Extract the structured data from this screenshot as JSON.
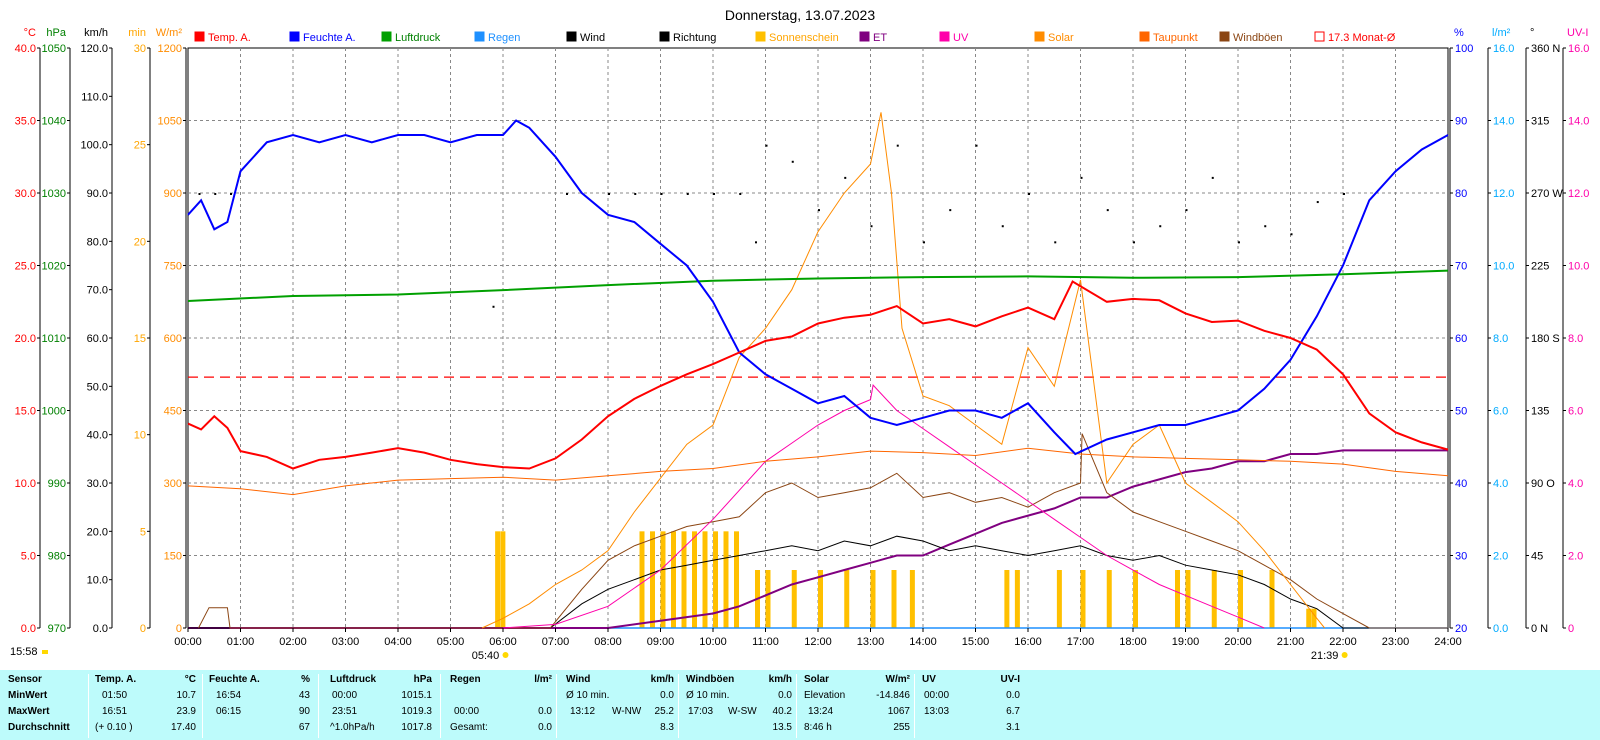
{
  "title": "Donnerstag, 13.07.2023",
  "legend": [
    {
      "label": "Temp. A.",
      "color": "#ff0000",
      "text_color": "#ff0000"
    },
    {
      "label": "Feuchte A.",
      "color": "#0000ff",
      "text_color": "#0000ff"
    },
    {
      "label": "Luftdruck",
      "color": "#00a000",
      "text_color": "#008000"
    },
    {
      "label": "Regen",
      "color": "#1e90ff",
      "text_color": "#1e90ff"
    },
    {
      "label": "Wind",
      "color": "#000000",
      "text_color": "#000000"
    },
    {
      "label": "Richtung",
      "color": "#000000",
      "text_color": "#000000"
    },
    {
      "label": "Sonnenschein",
      "color": "#ffc000",
      "text_color": "#ffa500"
    },
    {
      "label": "ET",
      "color": "#800080",
      "text_color": "#800080"
    },
    {
      "label": "UV",
      "color": "#ff00aa",
      "text_color": "#ff00aa"
    },
    {
      "label": "Solar",
      "color": "#ff8c00",
      "text_color": "#ff8c00"
    },
    {
      "label": "Taupunkt",
      "color": "#ff6600",
      "text_color": "#ff6600"
    },
    {
      "label": "Windböen",
      "color": "#8b4513",
      "text_color": "#8b4513"
    },
    {
      "label": "17.3 Monat-Ø",
      "color": "#ff0000",
      "text_color": "#ff0000",
      "outline": true
    }
  ],
  "left_axes": [
    {
      "unit": "°C",
      "color": "#ff0000",
      "ticks": [
        "40.0",
        "35.0",
        "30.0",
        "25.0",
        "20.0",
        "15.0",
        "10.0",
        "5.0",
        "0.0"
      ]
    },
    {
      "unit": "hPa",
      "color": "#008000",
      "ticks": [
        "1050",
        "1040",
        "1030",
        "1020",
        "1010",
        "1000",
        "990",
        "980",
        "970"
      ]
    },
    {
      "unit": "km/h",
      "color": "#000000",
      "ticks": [
        "120.0",
        "110.0",
        "100.0",
        "90.0",
        "80.0",
        "70.0",
        "60.0",
        "50.0",
        "40.0",
        "30.0",
        "20.0",
        "10.0",
        "0.0"
      ]
    },
    {
      "unit": "min",
      "color": "#ffa500",
      "ticks": [
        "30",
        "25",
        "20",
        "15",
        "10",
        "5",
        "0"
      ]
    },
    {
      "unit": "W/m²",
      "color": "#ff8c00",
      "ticks": [
        "1200",
        "1050",
        "900",
        "750",
        "600",
        "450",
        "300",
        "150",
        "0"
      ]
    }
  ],
  "right_axes": [
    {
      "unit": "%",
      "color": "#0000ff",
      "ticks": [
        "100",
        "90",
        "80",
        "70",
        "60",
        "50",
        "40",
        "30",
        "20"
      ]
    },
    {
      "unit": "l/m²",
      "color": "#00aaff",
      "ticks": [
        "16.0",
        "14.0",
        "12.0",
        "10.0",
        "8.0",
        "6.0",
        "4.0",
        "2.0",
        "0.0"
      ]
    },
    {
      "unit": "°",
      "color": "#000000",
      "ticks": [
        "360 N",
        "315",
        "270 W",
        "225",
        "180 S",
        "135",
        "90 O",
        "45",
        "0   N"
      ]
    },
    {
      "unit": "UV-I",
      "color": "#ff00aa",
      "ticks": [
        "16.0",
        "14.0",
        "12.0",
        "10.0",
        "8.0",
        "6.0",
        "4.0",
        "2.0",
        "0"
      ]
    }
  ],
  "time_labels": [
    "00:00",
    "01:00",
    "02:00",
    "03:00",
    "04:00",
    "05:00",
    "06:00",
    "07:00",
    "08:00",
    "09:00",
    "10:00",
    "11:00",
    "12:00",
    "13:00",
    "14:00",
    "15:00",
    "16:00",
    "17:00",
    "18:00",
    "19:00",
    "20:00",
    "21:00",
    "22:00",
    "23:00",
    "24:00"
  ],
  "sunrise": "05:40",
  "sunset": "21:39",
  "corner_time": "15:58",
  "chart_data": {
    "type": "line",
    "x_unit": "hour of day",
    "xlim": [
      0,
      24
    ],
    "month_avg_temp": 17.3,
    "series": [
      {
        "name": "Temp. A.",
        "unit": "°C",
        "ylim": [
          0,
          40
        ],
        "x": [
          0,
          0.25,
          0.5,
          0.75,
          1,
          1.5,
          2,
          2.5,
          3,
          3.5,
          4,
          4.5,
          5,
          5.5,
          6,
          6.5,
          7,
          7.5,
          8,
          8.5,
          9,
          9.5,
          10,
          10.5,
          11,
          11.5,
          12,
          12.5,
          13,
          13.5,
          14,
          14.5,
          15,
          15.5,
          16,
          16.5,
          16.85,
          17.5,
          18,
          18.5,
          19,
          19.5,
          20,
          20.5,
          21,
          21.5,
          22,
          22.5,
          23,
          23.5,
          24
        ],
        "y": [
          14.1,
          13.7,
          14.6,
          13.8,
          12.2,
          11.8,
          11.0,
          11.6,
          11.8,
          12.1,
          12.4,
          12.1,
          11.6,
          11.3,
          11.1,
          11.0,
          11.7,
          13.0,
          14.6,
          15.8,
          16.7,
          17.5,
          18.2,
          19.0,
          19.8,
          20.1,
          21.0,
          21.4,
          21.6,
          22.2,
          21.0,
          21.3,
          20.8,
          21.5,
          22.1,
          21.3,
          23.9,
          22.5,
          22.7,
          22.6,
          21.7,
          21.1,
          21.2,
          20.5,
          20.0,
          19.2,
          17.5,
          14.8,
          13.5,
          12.8,
          12.3
        ]
      },
      {
        "name": "Feuchte A.",
        "unit": "%",
        "ylim": [
          20,
          100
        ],
        "x": [
          0,
          0.25,
          0.5,
          0.75,
          1,
          1.5,
          2,
          2.5,
          3,
          3.5,
          4,
          4.5,
          5,
          5.5,
          6,
          6.25,
          6.5,
          7,
          7.5,
          8,
          8.5,
          9,
          9.5,
          10,
          10.5,
          11,
          11.5,
          12,
          12.5,
          13,
          13.5,
          14,
          14.5,
          15,
          15.5,
          16,
          16.5,
          16.9,
          17.5,
          18,
          18.5,
          19,
          19.5,
          20,
          20.5,
          21,
          21.5,
          22,
          22.5,
          23,
          23.5,
          24
        ],
        "y": [
          77,
          79,
          75,
          76,
          83,
          87,
          88,
          87,
          88,
          87,
          88,
          88,
          87,
          88,
          88,
          90,
          89,
          85,
          80,
          77,
          76,
          73,
          70,
          65,
          58,
          55,
          53,
          51,
          52,
          49,
          48,
          49,
          50,
          50,
          49,
          51,
          47,
          44,
          46,
          47,
          48,
          48,
          49,
          50,
          53,
          57,
          63,
          70,
          79,
          83,
          86,
          88
        ]
      },
      {
        "name": "Luftdruck",
        "unit": "hPa",
        "ylim": [
          970,
          1050
        ],
        "x": [
          0,
          2,
          4,
          6,
          8,
          10,
          12,
          14,
          16,
          18,
          20,
          22,
          24
        ],
        "y": [
          1015.1,
          1015.8,
          1016.0,
          1016.6,
          1017.3,
          1017.9,
          1018.2,
          1018.4,
          1018.5,
          1018.3,
          1018.4,
          1018.8,
          1019.3
        ]
      },
      {
        "name": "Taupunkt",
        "unit": "°C",
        "ylim": [
          0,
          40
        ],
        "x": [
          0,
          1,
          2,
          3,
          4,
          5,
          6,
          7,
          8,
          9,
          10,
          11,
          12,
          13,
          14,
          15,
          16,
          17,
          18,
          19,
          20,
          21,
          22,
          23,
          24
        ],
        "y": [
          9.8,
          9.6,
          9.2,
          9.8,
          10.2,
          10.3,
          10.4,
          10.2,
          10.5,
          10.8,
          11.0,
          11.5,
          11.8,
          12.2,
          12.1,
          11.9,
          12.4,
          12.0,
          11.8,
          11.7,
          11.6,
          11.5,
          11.3,
          10.8,
          10.5
        ]
      },
      {
        "name": "Solar",
        "unit": "W/m²",
        "ylim": [
          0,
          1200
        ],
        "x": [
          5.6,
          6,
          6.5,
          7,
          7.5,
          8,
          8.5,
          9,
          9.5,
          10,
          10.5,
          11,
          11.5,
          12,
          12.5,
          13,
          13.2,
          13.4,
          13.6,
          14,
          14.5,
          15,
          15.5,
          16,
          16.5,
          17,
          17.5,
          18,
          18.5,
          19,
          19.5,
          20,
          20.5,
          21,
          21.5,
          21.65
        ],
        "y": [
          0,
          20,
          50,
          90,
          120,
          160,
          240,
          310,
          380,
          420,
          560,
          620,
          700,
          820,
          900,
          960,
          1067,
          900,
          620,
          480,
          460,
          420,
          380,
          580,
          500,
          720,
          300,
          380,
          420,
          300,
          260,
          220,
          160,
          90,
          20,
          0
        ]
      },
      {
        "name": "UV",
        "unit": "UV-I",
        "ylim": [
          0,
          16
        ],
        "x": [
          6,
          7,
          8,
          9,
          10,
          10.5,
          11,
          11.5,
          12,
          12.5,
          13,
          13.05,
          13.5,
          14,
          14.5,
          15,
          15.5,
          16,
          16.5,
          17,
          17.5,
          18,
          18.5,
          19,
          19.5,
          20,
          20.5
        ],
        "y": [
          0,
          0.1,
          0.6,
          1.6,
          3.0,
          3.8,
          4.6,
          5.1,
          5.6,
          6.0,
          6.3,
          6.7,
          6.0,
          5.5,
          5.0,
          4.5,
          4.0,
          3.5,
          3.0,
          2.5,
          2.0,
          1.6,
          1.2,
          0.9,
          0.6,
          0.3,
          0
        ]
      },
      {
        "name": "Wind",
        "unit": "km/h",
        "ylim": [
          0,
          120
        ],
        "x": [
          0,
          6.9,
          7.5,
          8,
          8.5,
          9,
          9.5,
          10,
          10.5,
          11,
          11.5,
          12,
          12.5,
          13,
          13.5,
          14,
          14.5,
          15,
          15.5,
          16,
          16.5,
          17,
          17.5,
          18,
          18.5,
          19,
          19.5,
          20,
          20.5,
          21,
          21.5,
          22,
          22.5,
          24
        ],
        "y": [
          0,
          0,
          5,
          8,
          10,
          12,
          13,
          14,
          15,
          16,
          17,
          16,
          18,
          17,
          19,
          18,
          16,
          17,
          16,
          15,
          16,
          17,
          15,
          14,
          15,
          13,
          12,
          11,
          9,
          6,
          4,
          0,
          0,
          0
        ]
      },
      {
        "name": "Windböen",
        "unit": "km/h",
        "ylim": [
          0,
          120
        ],
        "x": [
          0.2,
          0.4,
          0.6,
          0.75,
          0.8,
          6.9,
          7.5,
          8,
          8.5,
          9,
          9.5,
          10,
          10.5,
          11,
          11.5,
          12,
          12.5,
          13,
          13.5,
          14,
          14.5,
          15,
          15.5,
          16,
          16.5,
          17,
          17.03,
          17.5,
          18,
          18.5,
          19,
          19.5,
          20,
          20.5,
          21,
          21.5,
          22,
          22.5,
          24
        ],
        "y": [
          0,
          4.2,
          4.2,
          4.2,
          0,
          0,
          8,
          14,
          17,
          19,
          21,
          22,
          23,
          28,
          30,
          27,
          28,
          29,
          32,
          27,
          28,
          26,
          27,
          25,
          28,
          30,
          40.2,
          28,
          24,
          22,
          20,
          18,
          16,
          13,
          10,
          6,
          3,
          0,
          0
        ]
      },
      {
        "name": "Richtung",
        "unit": "°",
        "ylim": [
          0,
          360
        ],
        "x": [
          0.2,
          0.5,
          0.8,
          5.8,
          7.2,
          8,
          8.5,
          9,
          9.5,
          10,
          10.5,
          10.8,
          11,
          11.5,
          12,
          12.5,
          13,
          13.5,
          14,
          14.5,
          15,
          15.5,
          16,
          16.5,
          17,
          17.5,
          18,
          18.5,
          19,
          19.5,
          20,
          20.5,
          21,
          21.5,
          22
        ],
        "y": [
          270,
          270,
          270,
          200,
          270,
          270,
          270,
          270,
          270,
          270,
          270,
          240,
          300,
          290,
          260,
          280,
          250,
          300,
          240,
          260,
          300,
          250,
          270,
          240,
          280,
          260,
          240,
          250,
          260,
          280,
          240,
          250,
          245,
          265,
          270
        ]
      },
      {
        "name": "Sonnenschein",
        "unit": "min",
        "ylim": [
          0,
          30
        ],
        "x": [
          5.85,
          5.95,
          8.6,
          8.8,
          9.0,
          9.2,
          9.4,
          9.6,
          9.8,
          10.0,
          10.2,
          10.4,
          10.8,
          11.0,
          11.5,
          12.0,
          12.5,
          13.0,
          13.4,
          13.75,
          15.55,
          15.75,
          16.55,
          17.0,
          17.5,
          18.0,
          18.8,
          19.0,
          19.5,
          20.0,
          20.6,
          21.3,
          21.4
        ],
        "y": [
          5,
          5,
          5,
          5,
          5,
          5,
          5,
          5,
          5,
          5,
          5,
          5,
          3,
          3,
          3,
          3,
          3,
          3,
          3,
          3,
          3,
          3,
          3,
          3,
          3,
          3,
          3,
          3,
          3,
          3,
          3,
          1,
          1
        ]
      },
      {
        "name": "ET",
        "unit": "l/m²",
        "ylim": [
          0,
          16
        ],
        "x": [
          0,
          8,
          9,
          10,
          10.5,
          11,
          11.5,
          12,
          12.5,
          13,
          13.5,
          14,
          14.5,
          15,
          15.5,
          16,
          16.5,
          17,
          17.5,
          18,
          18.5,
          19,
          19.5,
          20,
          20.5,
          21,
          21.5,
          22,
          22.5,
          23,
          24
        ],
        "y": [
          0,
          0,
          0.2,
          0.4,
          0.6,
          0.9,
          1.2,
          1.4,
          1.6,
          1.8,
          2.0,
          2.0,
          2.3,
          2.6,
          2.9,
          3.1,
          3.3,
          3.6,
          3.6,
          3.9,
          4.1,
          4.3,
          4.4,
          4.6,
          4.6,
          4.8,
          4.8,
          4.9,
          4.9,
          4.9,
          4.9
        ]
      },
      {
        "name": "Regen",
        "unit": "l/m²",
        "ylim": [
          0,
          16
        ],
        "x": [
          0,
          24
        ],
        "y": [
          0,
          0
        ]
      }
    ]
  },
  "stats": {
    "row_labels": {
      "header": "Sensor",
      "min": "MinWert",
      "max": "MaxWert",
      "avg": "Durchschnitt"
    },
    "temp": {
      "title": "Temp. A.",
      "unit": "°C",
      "min_time": "01:50",
      "min": "10.7",
      "max_time": "16:51",
      "max": "23.9",
      "avg_note": "(+ 0.10 )",
      "avg": "17.40"
    },
    "hum": {
      "title": "Feuchte A.",
      "unit": "%",
      "min_time": "16:54",
      "min": "43",
      "max_time": "06:15",
      "max": "90",
      "avg": "67"
    },
    "press": {
      "title": "Luftdruck",
      "unit": "hPa",
      "min_time": "00:00",
      "min": "1015.1",
      "max_time": "23:51",
      "max": "1019.3",
      "avg_note": "^1.0hPa/h",
      "avg": "1017.8"
    },
    "rain": {
      "title": "Regen",
      "unit": "l/m²",
      "max_time": "00:00",
      "max": "0.0",
      "avg_label": "Gesamt:",
      "avg": "0.0"
    },
    "wind": {
      "title": "Wind",
      "unit": "km/h",
      "min_label": "Ø 10 min.",
      "min": "0.0",
      "max_time": "13:12",
      "max_dir": "W-NW",
      "max": "25.2",
      "avg": "8.3"
    },
    "gust": {
      "title": "Windböen",
      "unit": "km/h",
      "min_label": "Ø 10 min.",
      "min": "0.0",
      "max_time": "17:03",
      "max_dir": "W-SW",
      "max": "40.2",
      "avg": "13.5"
    },
    "solar": {
      "title": "Solar",
      "unit": "W/m²",
      "min_label": "Elevation",
      "min": "-14.846",
      "max_time": "13:24",
      "max": "1067",
      "avg_note": "8:46 h",
      "avg": "255"
    },
    "uv": {
      "title": "UV",
      "unit": "UV-I",
      "min_time": "00:00",
      "min": "0.0",
      "max_time": "13:03",
      "max": "6.7",
      "avg": "3.1"
    }
  }
}
